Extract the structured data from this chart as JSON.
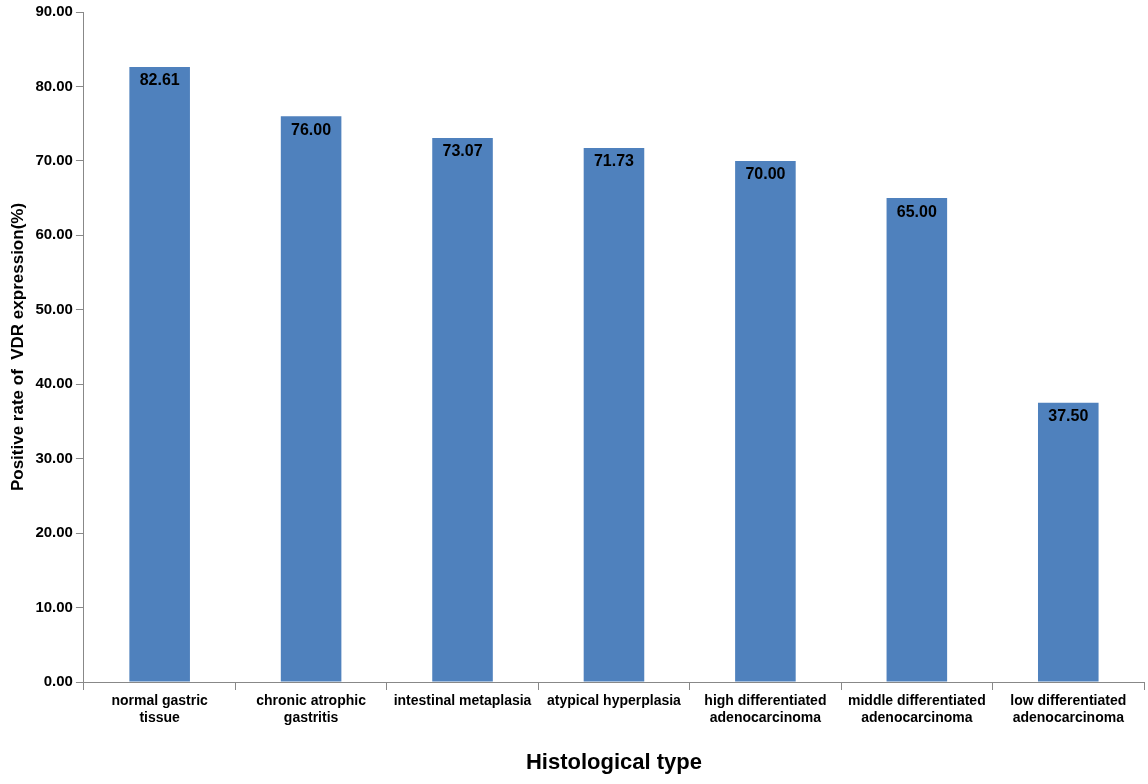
{
  "chart_data": {
    "type": "bar",
    "xlabel": "Histological type",
    "ylabel": "Positive rate of  VDR expression(%)",
    "categories": [
      "normal gastric tissue",
      "chronic atrophic gastritis",
      "intestinal metaplasia",
      "atypical hyperplasia",
      "high differentiated adenocarcinoma",
      "middle differentiated adenocarcinoma",
      "low differentiated adenocarcinoma"
    ],
    "values": [
      82.61,
      76.0,
      73.07,
      71.73,
      70.0,
      65.0,
      37.5
    ],
    "value_labels": [
      "82.61",
      "76.00",
      "73.07",
      "71.73",
      "70.00",
      "65.00",
      "37.50"
    ],
    "color": "#4f81bd",
    "ylim": [
      0,
      90
    ],
    "yticks": [
      {
        "value": 0,
        "label": "0.00"
      },
      {
        "value": 10,
        "label": "10.00"
      },
      {
        "value": 20,
        "label": "20.00"
      },
      {
        "value": 30,
        "label": "30.00"
      },
      {
        "value": 40,
        "label": "40.00"
      },
      {
        "value": 50,
        "label": "50.00"
      },
      {
        "value": 60,
        "label": "60.00"
      },
      {
        "value": 70,
        "label": "70.00"
      },
      {
        "value": 80,
        "label": "80.00"
      },
      {
        "value": 90,
        "label": "90.00"
      }
    ],
    "grid": false,
    "legend": false
  }
}
